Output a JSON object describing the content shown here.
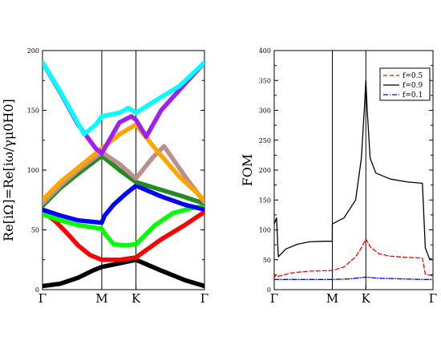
{
  "chart_data": [
    {
      "type": "line",
      "ylabel": "Re[iΩ]=Re[iω/γμ0H0]",
      "ylim": [
        0,
        200
      ],
      "y_ticks": [
        "0",
        "50",
        "100",
        "150",
        "200"
      ],
      "x_symmetry_points": [
        "Γ",
        "M",
        "K",
        "Γ"
      ],
      "x_positions": [
        0,
        1,
        1.577,
        2.732
      ],
      "grid": false,
      "series": [
        {
          "color": "#000000",
          "points": [
            [
              0,
              3
            ],
            [
              0.3,
              5
            ],
            [
              0.6,
              10
            ],
            [
              0.85,
              16
            ],
            [
              1,
              19
            ],
            [
              1.3,
              22
            ],
            [
              1.577,
              25
            ],
            [
              2.0,
              16
            ],
            [
              2.4,
              8
            ],
            [
              2.732,
              3
            ]
          ]
        },
        {
          "color": "#ff0000",
          "points": [
            [
              0,
              65
            ],
            [
              0.2,
              58
            ],
            [
              0.4,
              48
            ],
            [
              0.6,
              37
            ],
            [
              0.8,
              29
            ],
            [
              1,
              25
            ],
            [
              1.3,
              25
            ],
            [
              1.577,
              27
            ],
            [
              2.0,
              42
            ],
            [
              2.4,
              54
            ],
            [
              2.732,
              65
            ]
          ]
        },
        {
          "color": "#00ff00",
          "points": [
            [
              0,
              63
            ],
            [
              0.3,
              58
            ],
            [
              0.6,
              54
            ],
            [
              1,
              51
            ],
            [
              1.05,
              47
            ],
            [
              1.2,
              38
            ],
            [
              1.4,
              37
            ],
            [
              1.577,
              38
            ],
            [
              1.9,
              54
            ],
            [
              2.2,
              64
            ],
            [
              2.5,
              68
            ],
            [
              2.732,
              70
            ]
          ]
        },
        {
          "color": "#0000ff",
          "points": [
            [
              0,
              67
            ],
            [
              0.3,
              62
            ],
            [
              0.6,
              58
            ],
            [
              1,
              56
            ],
            [
              1.05,
              62
            ],
            [
              1.2,
              71
            ],
            [
              1.4,
              80
            ],
            [
              1.577,
              87
            ],
            [
              2.0,
              78
            ],
            [
              2.4,
              71
            ],
            [
              2.732,
              67
            ]
          ]
        },
        {
          "color": "#228b22",
          "points": [
            [
              0,
              70
            ],
            [
              0.3,
              85
            ],
            [
              0.6,
              97
            ],
            [
              1,
              112
            ],
            [
              1.3,
              100
            ],
            [
              1.577,
              90
            ],
            [
              1.9,
              85
            ],
            [
              2.3,
              79
            ],
            [
              2.732,
              72
            ]
          ]
        },
        {
          "color": "#bc8f8f",
          "points": [
            [
              0,
              72
            ],
            [
              0.3,
              87
            ],
            [
              0.6,
              100
            ],
            [
              1,
              115
            ],
            [
              1.3,
              105
            ],
            [
              1.577,
              93
            ],
            [
              1.85,
              110
            ],
            [
              2.05,
              120
            ],
            [
              2.4,
              95
            ],
            [
              2.732,
              73
            ]
          ]
        },
        {
          "color": "#ffa500",
          "points": [
            [
              0,
              75
            ],
            [
              0.3,
              90
            ],
            [
              0.6,
              102
            ],
            [
              1,
              118
            ],
            [
              1.3,
              130
            ],
            [
              1.577,
              138
            ],
            [
              1.9,
              118
            ],
            [
              2.3,
              95
            ],
            [
              2.732,
              75
            ]
          ]
        },
        {
          "color": "#a020f0",
          "points": [
            [
              0,
              190
            ],
            [
              0.3,
              165
            ],
            [
              0.6,
              138
            ],
            [
              0.9,
              118
            ],
            [
              1,
              114
            ],
            [
              1.3,
              140
            ],
            [
              1.5,
              145
            ],
            [
              1.577,
              142
            ],
            [
              1.75,
              128
            ],
            [
              2.0,
              150
            ],
            [
              2.4,
              172
            ],
            [
              2.732,
              190
            ]
          ]
        },
        {
          "color": "#00ffff",
          "points": [
            [
              0,
              190
            ],
            [
              0.25,
              170
            ],
            [
              0.5,
              148
            ],
            [
              0.7,
              130
            ],
            [
              0.9,
              138
            ],
            [
              1,
              145
            ],
            [
              1.3,
              148
            ],
            [
              1.45,
              152
            ],
            [
              1.577,
              148
            ],
            [
              1.9,
              158
            ],
            [
              2.3,
              170
            ],
            [
              2.732,
              190
            ]
          ]
        }
      ]
    },
    {
      "type": "line",
      "ylabel": "FOM",
      "ylim": [
        0,
        400
      ],
      "y_ticks": [
        "0",
        "50",
        "100",
        "150",
        "200",
        "250",
        "300",
        "350",
        "400"
      ],
      "x_symmetry_points": [
        "Γ",
        "M",
        "K",
        "Γ"
      ],
      "x_positions": [
        0,
        1,
        1.577,
        2.732
      ],
      "legend_position": "top-right",
      "grid": false,
      "series": [
        {
          "name": "f=0.5",
          "color": "#ff0000",
          "dash": "5,3",
          "points": [
            [
              0,
              20
            ],
            [
              0.03,
              25
            ],
            [
              0.06,
              22
            ],
            [
              0.3,
              28
            ],
            [
              0.6,
              31
            ],
            [
              1,
              32
            ],
            [
              1.2,
              38
            ],
            [
              1.4,
              55
            ],
            [
              1.5,
              70
            ],
            [
              1.577,
              85
            ],
            [
              1.65,
              72
            ],
            [
              1.8,
              60
            ],
            [
              2.0,
              56
            ],
            [
              2.3,
              54
            ],
            [
              2.55,
              53
            ],
            [
              2.6,
              26
            ],
            [
              2.732,
              23
            ]
          ]
        },
        {
          "name": "f=0.9",
          "color": "#000000",
          "dash": "",
          "points": [
            [
              0,
              110
            ],
            [
              0.04,
              120
            ],
            [
              0.07,
              55
            ],
            [
              0.2,
              68
            ],
            [
              0.4,
              76
            ],
            [
              0.6,
              80
            ],
            [
              0.85,
              81
            ],
            [
              0.999,
              81
            ],
            [
              1.001,
              110
            ],
            [
              1.2,
              120
            ],
            [
              1.4,
              150
            ],
            [
              1.5,
              220
            ],
            [
              1.55,
              300
            ],
            [
              1.577,
              350
            ],
            [
              1.6,
              300
            ],
            [
              1.65,
              220
            ],
            [
              1.75,
              195
            ],
            [
              2.0,
              185
            ],
            [
              2.3,
              180
            ],
            [
              2.55,
              178
            ],
            [
              2.6,
              70
            ],
            [
              2.67,
              52
            ],
            [
              2.732,
              50
            ]
          ]
        },
        {
          "name": "f=0.1",
          "color": "#0000ff",
          "dash": "6,2,1,2",
          "points": [
            [
              0,
              17
            ],
            [
              0.5,
              17
            ],
            [
              1,
              17
            ],
            [
              1.3,
              18
            ],
            [
              1.577,
              21
            ],
            [
              1.8,
              19
            ],
            [
              2.2,
              18
            ],
            [
              2.55,
              17
            ],
            [
              2.732,
              17
            ]
          ]
        }
      ]
    }
  ]
}
